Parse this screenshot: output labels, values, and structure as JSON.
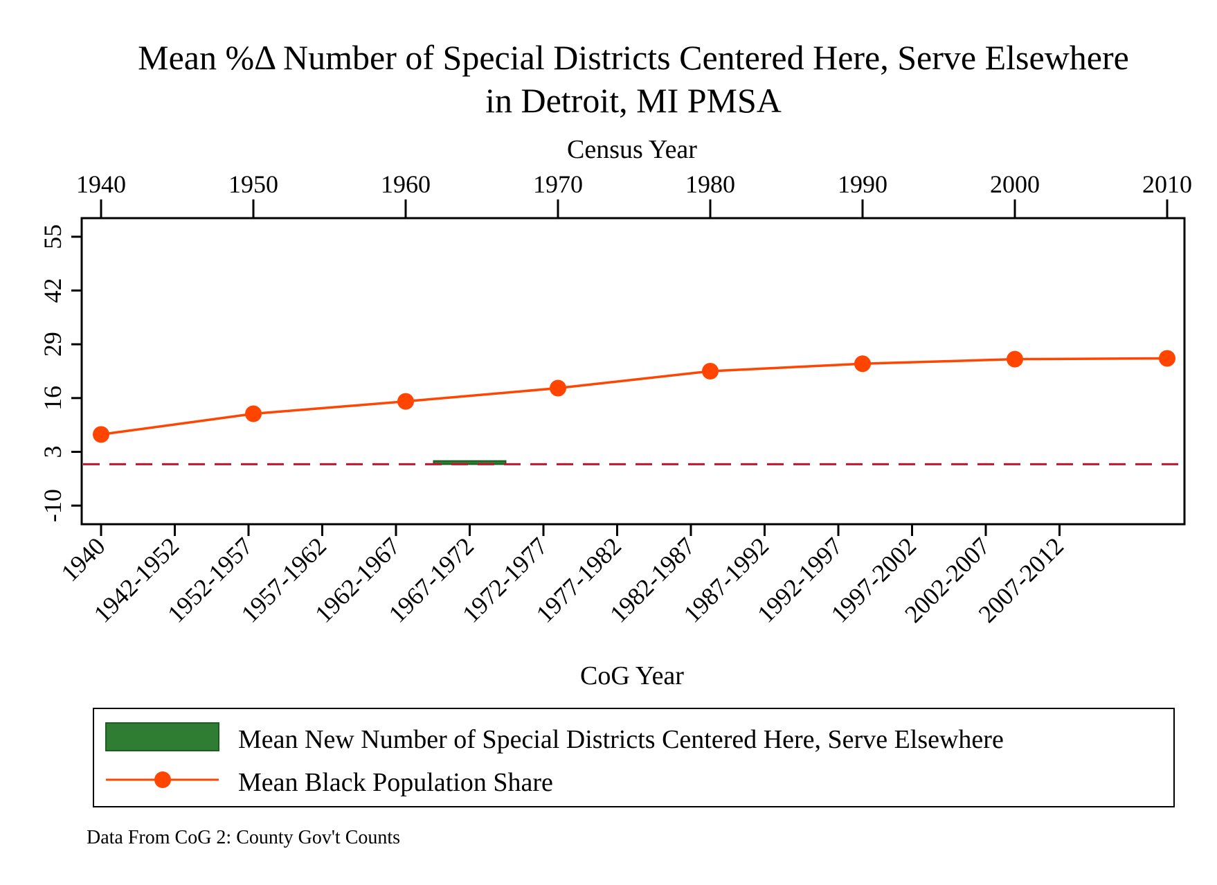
{
  "chart_data": {
    "type": "line",
    "title_lines": [
      "Mean %Δ Number of Special Districts Centered Here, Serve Elsewhere",
      "in Detroit, MI PMSA"
    ],
    "top_axis": {
      "label": "Census Year",
      "ticks": [
        1940,
        1950,
        1960,
        1970,
        1980,
        1990,
        2000,
        2010
      ],
      "range": [
        1940,
        2010
      ]
    },
    "bottom_axis": {
      "label": "CoG Year",
      "ticks": [
        "1940",
        "1942-1952",
        "1952-1957",
        "1957-1962",
        "1962-1967",
        "1967-1972",
        "1972-1977",
        "1977-1982",
        "1982-1987",
        "1987-1992",
        "1992-1997",
        "1997-2002",
        "2002-2007",
        "2007-2012"
      ]
    },
    "y_axis": {
      "label": "",
      "ticks": [
        -10,
        3,
        16,
        29,
        42,
        55
      ],
      "range": [
        -14.5,
        59.5
      ]
    },
    "series": [
      {
        "name": "Mean Black Population Share",
        "type": "line",
        "color": "#ff4500",
        "x": [
          1940,
          1950,
          1960,
          1970,
          1980,
          1990,
          2000,
          2010
        ],
        "y": [
          7.2,
          12.2,
          15.2,
          18.4,
          22.5,
          24.3,
          25.4,
          25.6
        ]
      },
      {
        "name": "Mean New Number of Special Districts Centered Here, Serve Elsewhere",
        "type": "bar",
        "color": "#2e7d32",
        "categories": [
          "1967-1972"
        ],
        "values": [
          0.8
        ]
      }
    ],
    "reference_line": {
      "y": 0,
      "style": "dashed",
      "color": "#c8102e"
    },
    "legend": {
      "placement": "bottom",
      "entries": [
        "Mean New Number of Special Districts Centered Here, Serve Elsewhere",
        "Mean Black Population Share"
      ]
    },
    "note": "Data From CoG 2: County Gov't Counts",
    "grid": false
  }
}
